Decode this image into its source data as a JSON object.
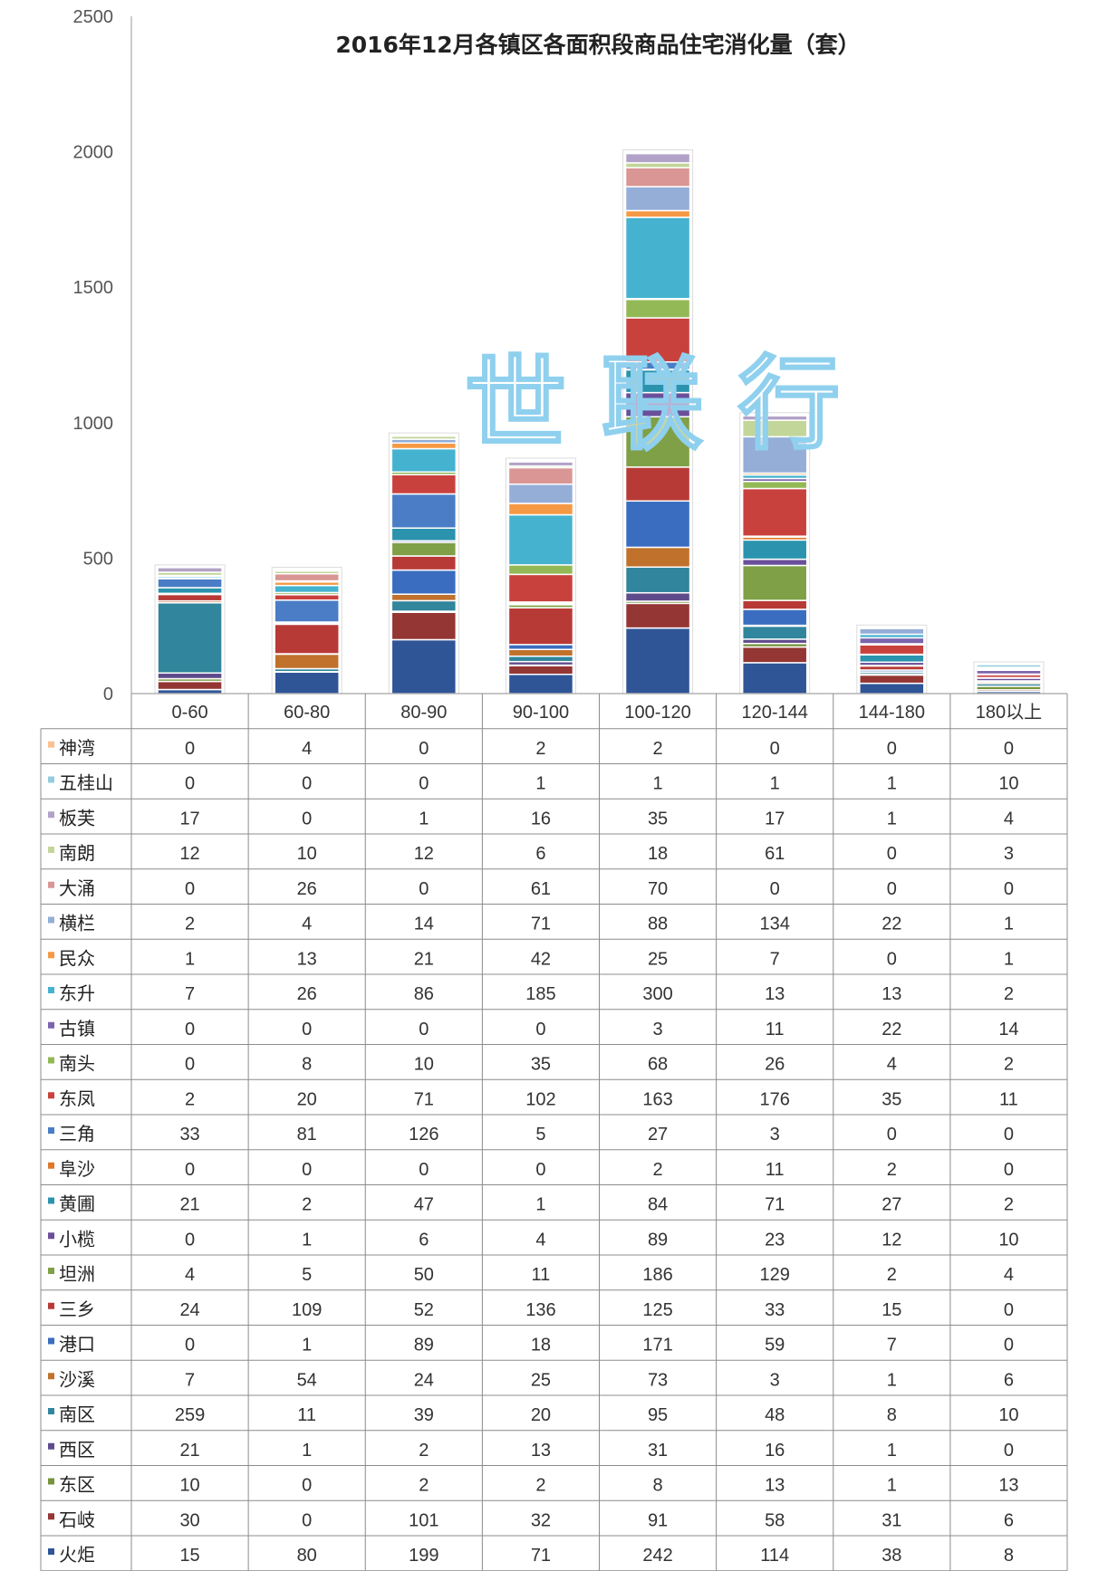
{
  "watermark": "世 联 行",
  "chart_data": {
    "type": "bar",
    "stacked": true,
    "title": "2016年12月各镇区各面积段商品住宅消化量（套）",
    "categories": [
      "0-60",
      "60-80",
      "80-90",
      "90-100",
      "100-120",
      "120-144",
      "144-180",
      "180以上"
    ],
    "ylim": [
      0,
      2500
    ],
    "yticks": [
      0,
      500,
      1000,
      1500,
      2000,
      2500
    ],
    "grid": false,
    "legend": "data-table-below",
    "series": [
      {
        "name": "火炬",
        "color": "#2f5597",
        "values": [
          15,
          80,
          199,
          71,
          242,
          114,
          38,
          8
        ]
      },
      {
        "name": "石岐",
        "color": "#943634",
        "values": [
          30,
          0,
          101,
          32,
          91,
          58,
          31,
          6
        ]
      },
      {
        "name": "东区",
        "color": "#77933c",
        "values": [
          10,
          0,
          2,
          2,
          8,
          13,
          1,
          13
        ]
      },
      {
        "name": "西区",
        "color": "#5f4b8b",
        "values": [
          21,
          1,
          2,
          13,
          31,
          16,
          1,
          0
        ]
      },
      {
        "name": "南区",
        "color": "#31859c",
        "values": [
          259,
          11,
          39,
          20,
          95,
          48,
          8,
          10
        ]
      },
      {
        "name": "沙溪",
        "color": "#c0712c",
        "values": [
          7,
          54,
          24,
          25,
          73,
          3,
          1,
          6
        ]
      },
      {
        "name": "港口",
        "color": "#3a6dbf",
        "values": [
          0,
          1,
          89,
          18,
          171,
          59,
          7,
          0
        ]
      },
      {
        "name": "三乡",
        "color": "#b83a36",
        "values": [
          24,
          109,
          52,
          136,
          125,
          33,
          15,
          0
        ]
      },
      {
        "name": "坦洲",
        "color": "#7fa046",
        "values": [
          4,
          5,
          50,
          11,
          186,
          129,
          2,
          4
        ]
      },
      {
        "name": "小榄",
        "color": "#6a4f9b",
        "values": [
          0,
          1,
          6,
          4,
          89,
          23,
          12,
          10
        ]
      },
      {
        "name": "黄圃",
        "color": "#2b93ad",
        "values": [
          21,
          2,
          47,
          1,
          84,
          71,
          27,
          2
        ]
      },
      {
        "name": "阜沙",
        "color": "#e0782c",
        "values": [
          0,
          0,
          0,
          0,
          2,
          11,
          2,
          0
        ]
      },
      {
        "name": "三角",
        "color": "#4a7dc5",
        "values": [
          33,
          81,
          126,
          5,
          27,
          3,
          0,
          0
        ]
      },
      {
        "name": "东凤",
        "color": "#c9413d",
        "values": [
          2,
          20,
          71,
          102,
          163,
          176,
          35,
          11
        ]
      },
      {
        "name": "南头",
        "color": "#93b956",
        "values": [
          0,
          8,
          10,
          35,
          68,
          26,
          4,
          2
        ]
      },
      {
        "name": "古镇",
        "color": "#7c64ad",
        "values": [
          0,
          0,
          0,
          0,
          3,
          11,
          22,
          14
        ]
      },
      {
        "name": "东升",
        "color": "#45b3cf",
        "values": [
          7,
          26,
          86,
          185,
          300,
          13,
          13,
          2
        ]
      },
      {
        "name": "民众",
        "color": "#f69945",
        "values": [
          1,
          13,
          21,
          42,
          25,
          7,
          0,
          1
        ]
      },
      {
        "name": "横栏",
        "color": "#94aed8",
        "values": [
          2,
          4,
          14,
          71,
          88,
          134,
          22,
          1
        ]
      },
      {
        "name": "大涌",
        "color": "#d99694",
        "values": [
          0,
          26,
          0,
          61,
          70,
          0,
          0,
          0
        ]
      },
      {
        "name": "南朗",
        "color": "#c2d69a",
        "values": [
          12,
          10,
          12,
          6,
          18,
          61,
          0,
          3
        ]
      },
      {
        "name": "板芙",
        "color": "#b3a2c7",
        "values": [
          17,
          0,
          1,
          16,
          35,
          17,
          1,
          4
        ]
      },
      {
        "name": "五桂山",
        "color": "#93cddd",
        "values": [
          0,
          0,
          0,
          1,
          1,
          1,
          1,
          10
        ]
      },
      {
        "name": "神湾",
        "color": "#fac090",
        "values": [
          0,
          4,
          0,
          2,
          2,
          0,
          0,
          0
        ]
      }
    ]
  }
}
